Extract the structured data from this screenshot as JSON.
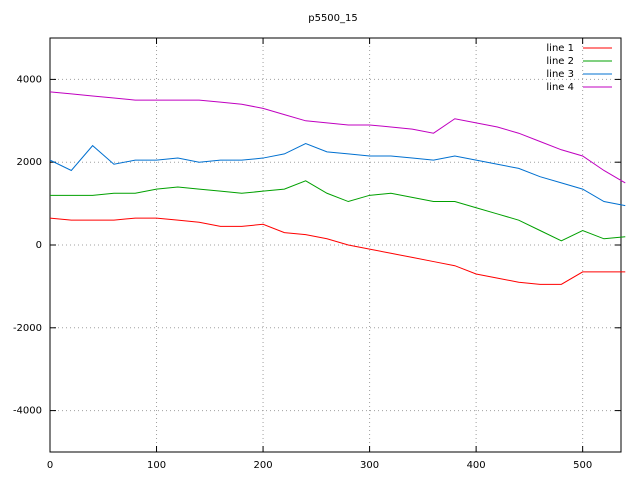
{
  "chart_data": {
    "type": "line",
    "title": "p5500_15",
    "x": [
      0,
      20,
      40,
      60,
      80,
      100,
      120,
      140,
      160,
      180,
      200,
      220,
      240,
      260,
      280,
      300,
      320,
      340,
      360,
      380,
      400,
      420,
      440,
      460,
      480,
      500,
      520,
      540
    ],
    "series": [
      {
        "name": "line 1",
        "color": "#ff0000",
        "values": [
          650,
          600,
          600,
          600,
          650,
          650,
          600,
          550,
          450,
          450,
          500,
          300,
          250,
          150,
          0,
          -100,
          -200,
          -300,
          -400,
          -500,
          -700,
          -800,
          -900,
          -950,
          -950,
          -650,
          -650,
          -650
        ]
      },
      {
        "name": "line 2",
        "color": "#00a000",
        "values": [
          1200,
          1200,
          1200,
          1250,
          1250,
          1350,
          1400,
          1350,
          1300,
          1250,
          1300,
          1350,
          1550,
          1250,
          1050,
          1200,
          1250,
          1150,
          1050,
          1050,
          900,
          750,
          600,
          350,
          100,
          350,
          150,
          200
        ]
      },
      {
        "name": "line 3",
        "color": "#0070d0",
        "values": [
          2050,
          1800,
          2400,
          1950,
          2050,
          2050,
          2100,
          2000,
          2050,
          2050,
          2100,
          2200,
          2450,
          2250,
          2200,
          2150,
          2150,
          2100,
          2050,
          2150,
          2050,
          1950,
          1850,
          1650,
          1500,
          1350,
          1050,
          950
        ]
      },
      {
        "name": "line 4",
        "color": "#c000c0",
        "values": [
          3700,
          3650,
          3600,
          3550,
          3500,
          3500,
          3500,
          3500,
          3450,
          3400,
          3300,
          3150,
          3000,
          2950,
          2900,
          2900,
          2850,
          2800,
          2700,
          3050,
          2950,
          2850,
          2700,
          2500,
          2300,
          2150,
          1800,
          1500
        ]
      }
    ],
    "xlim": [
      0,
      536
    ],
    "xticks": [
      0,
      100,
      200,
      300,
      400,
      500
    ],
    "ylim": [
      -5000,
      5000
    ],
    "yticks": [
      -4000,
      -2000,
      0,
      2000,
      4000
    ],
    "grid": true,
    "legend": "top-right"
  }
}
